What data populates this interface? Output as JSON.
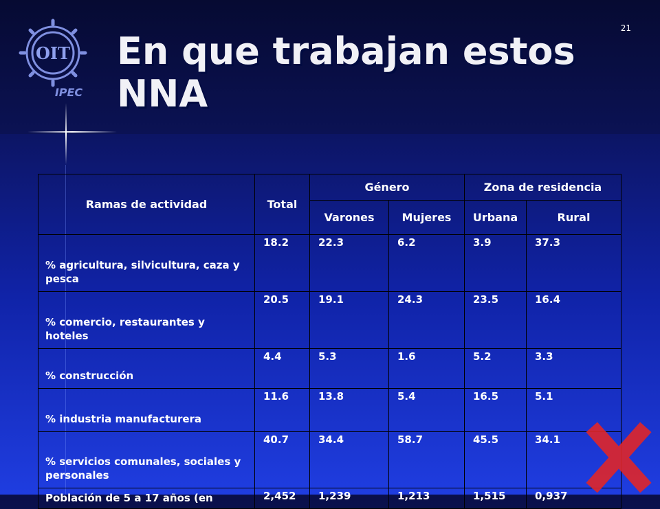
{
  "slide": {
    "number": "21",
    "title_line1": "En que trabajan estos",
    "title_line2": "NNA",
    "logo_text_top": "OIT",
    "logo_text_bottom": "IPEC"
  },
  "table": {
    "header": {
      "rama": "Ramas de actividad",
      "total": "Total",
      "genero": "Género",
      "zona": "Zona de residencia",
      "varones": "Varones",
      "mujeres": "Mujeres",
      "urbana": "Urbana",
      "rural": "Rural"
    },
    "rows": [
      {
        "rama": "% agricultura, silvicultura, caza y pesca",
        "total": "18.2",
        "varones": "22.3",
        "mujeres": "6.2",
        "urbana": "3.9",
        "rural": "37.3"
      },
      {
        "rama": "% comercio, restaurantes y hoteles",
        "total": "20.5",
        "varones": "19.1",
        "mujeres": "24.3",
        "urbana": "23.5",
        "rural": "16.4"
      },
      {
        "rama": "% construcción",
        "total": "4.4",
        "varones": "5.3",
        "mujeres": "1.6",
        "urbana": "5.2",
        "rural": "3.3"
      },
      {
        "rama": "% industria manufacturera",
        "total": "11.6",
        "varones": "13.8",
        "mujeres": "5.4",
        "urbana": "16.5",
        "rural": "5.1"
      },
      {
        "rama": "% servicios comunales, sociales y personales",
        "total": "40.7",
        "varones": "34.4",
        "mujeres": "58.7",
        "urbana": "45.5",
        "rural": "34.1"
      },
      {
        "rama": "Población de 5 a 17 años (en",
        "total": "2,452",
        "varones": "1,239",
        "mujeres": "1,213",
        "urbana": "1,515",
        "rural": "0,937"
      }
    ]
  },
  "colors": {
    "background_top": "#0a0f4a",
    "background_bottom": "#1f3de0",
    "text": "#ffffff",
    "stamp_red": "#e0262a"
  }
}
